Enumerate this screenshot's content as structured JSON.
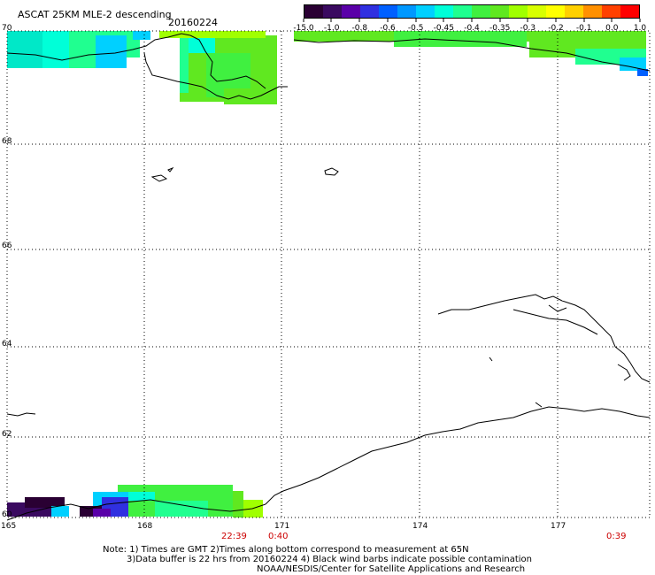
{
  "header": {
    "title": "ASCAT 25KM MLE-2 descending",
    "date": "20160224"
  },
  "colorbar": {
    "labels": [
      "-15.0",
      "-1.0",
      "-0.8",
      "-0.6",
      "-0.5",
      "-0.45",
      "-0.4",
      "-0.35",
      "-0.3",
      "-0.2",
      "-0.1",
      "0.0",
      "1.0"
    ],
    "colors": [
      "#2a0033",
      "#3a0a60",
      "#5a00a8",
      "#3030e0",
      "#0060ff",
      "#0098ff",
      "#00d0ff",
      "#00ffd8",
      "#20ff90",
      "#40f040",
      "#60e820",
      "#a0ff00",
      "#d8ff00",
      "#ffff00",
      "#ffd000",
      "#ff9000",
      "#ff4000",
      "#ff0000"
    ]
  },
  "axes": {
    "lat_labels": [
      "70",
      "68",
      "66",
      "64",
      "62",
      "60"
    ],
    "lon_labels": [
      "165",
      "168",
      "171",
      "174",
      "177"
    ]
  },
  "times": [
    "22:39",
    "0:40",
    "0:39"
  ],
  "notes": {
    "line1": "Note: 1) Times are GMT 2)Times along bottom correspond to measurement at 65N",
    "line2": "3)Data buffer is 22 hrs from 20160224 4) Black wind barbs indicate possible contamination",
    "line3": "NOAA/NESDIS/Center for Satellite Applications and Research"
  }
}
